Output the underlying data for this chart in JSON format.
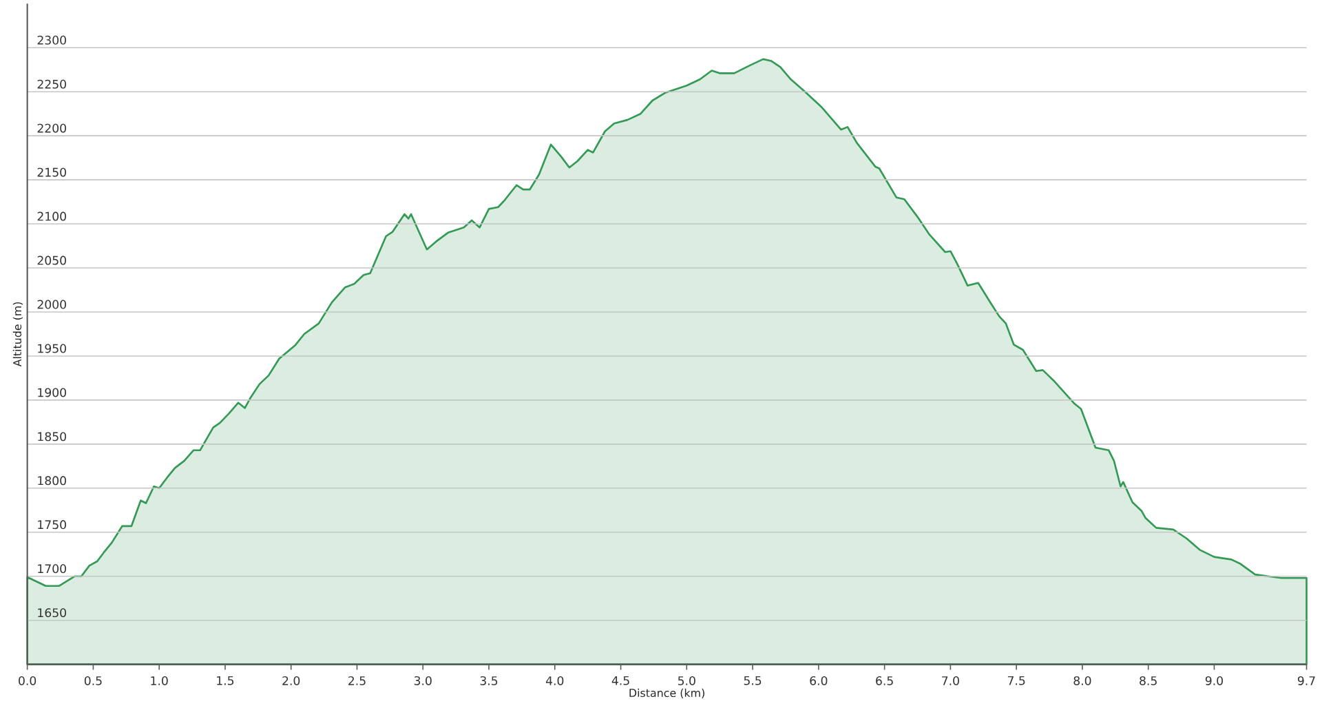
{
  "chart_data": {
    "type": "area",
    "xlabel": "Distance  (km)",
    "ylabel": "Altitude (m)",
    "color": "#339955",
    "grid": "y",
    "x": [
      0,
      0.14,
      0.24,
      0.36,
      0.41,
      0.47,
      0.53,
      0.58,
      0.64,
      0.72,
      0.79,
      0.86,
      0.9,
      0.96,
      1.0,
      1.06,
      1.12,
      1.19,
      1.26,
      1.31,
      1.36,
      1.41,
      1.46,
      1.53,
      1.6,
      1.65,
      1.69,
      1.76,
      1.83,
      1.91,
      2.03,
      2.1,
      2.21,
      2.31,
      2.41,
      2.48,
      2.55,
      2.6,
      2.72,
      2.77,
      2.86,
      2.89,
      2.91,
      3.03,
      3.1,
      3.19,
      3.31,
      3.37,
      3.43,
      3.5,
      3.57,
      3.62,
      3.71,
      3.76,
      3.81,
      3.88,
      3.97,
      4.05,
      4.11,
      4.17,
      4.25,
      4.29,
      4.38,
      4.45,
      4.55,
      4.65,
      4.74,
      4.84,
      5.0,
      5.1,
      5.19,
      5.25,
      5.36,
      5.48,
      5.58,
      5.64,
      5.71,
      5.79,
      5.89,
      6.02,
      6.17,
      6.22,
      6.29,
      6.43,
      6.46,
      6.59,
      6.65,
      6.75,
      6.84,
      6.96,
      7.0,
      7.05,
      7.13,
      7.21,
      7.31,
      7.37,
      7.42,
      7.48,
      7.55,
      7.65,
      7.7,
      7.79,
      7.94,
      7.99,
      8.1,
      8.2,
      8.24,
      8.29,
      8.31,
      8.38,
      8.45,
      8.48,
      8.56,
      8.69,
      8.79,
      8.89,
      9.0,
      9.13,
      9.2,
      9.31,
      9.41,
      9.51,
      9.7
    ],
    "values": [
      1699,
      1689,
      1689,
      1700,
      1700,
      1712,
      1717,
      1727,
      1738,
      1757,
      1757,
      1786,
      1783,
      1802,
      1800,
      1812,
      1823,
      1831,
      1843,
      1843,
      1856,
      1869,
      1874,
      1885,
      1897,
      1891,
      1902,
      1918,
      1928,
      1947,
      1962,
      1975,
      1987,
      2011,
      2028,
      2032,
      2042,
      2044,
      2086,
      2091,
      2111,
      2106,
      2111,
      2071,
      2080,
      2090,
      2096,
      2104,
      2096,
      2117,
      2119,
      2127,
      2144,
      2139,
      2139,
      2156,
      2190,
      2176,
      2164,
      2171,
      2184,
      2181,
      2205,
      2214,
      2218,
      2225,
      2240,
      2249,
      2257,
      2264,
      2274,
      2271,
      2271,
      2280,
      2287,
      2285,
      2278,
      2264,
      2251,
      2233,
      2207,
      2210,
      2192,
      2165,
      2163,
      2130,
      2128,
      2108,
      2088,
      2068,
      2069,
      2055,
      2030,
      2033,
      2009,
      1995,
      1987,
      1963,
      1957,
      1933,
      1934,
      1921,
      1896,
      1890,
      1846,
      1843,
      1831,
      1802,
      1807,
      1784,
      1774,
      1766,
      1755,
      1753,
      1743,
      1730,
      1722,
      1719,
      1714,
      1702,
      1700,
      1698,
      1698
    ],
    "xlim": [
      0,
      9.7
    ],
    "ylim": [
      1600,
      2350
    ],
    "xticks": [
      {
        "value": 0,
        "label": "0.0"
      },
      0.5,
      {
        "value": 1,
        "label": "1.0"
      },
      1.5,
      {
        "value": 2,
        "label": "2.0"
      },
      2.5,
      {
        "value": 3,
        "label": "3.0"
      },
      3.5,
      {
        "value": 4,
        "label": "4.0"
      },
      4.5,
      {
        "value": 5,
        "label": "5.0"
      },
      5.5,
      {
        "value": 6,
        "label": "6.0"
      },
      6.5,
      {
        "value": 7,
        "label": "7.0"
      },
      7.5,
      {
        "value": 8,
        "label": "8.0"
      },
      8.5,
      {
        "value": 9,
        "label": "9.0"
      },
      9.7
    ],
    "yticks": [
      1650,
      1700,
      1750,
      1800,
      1850,
      1900,
      1950,
      2000,
      2050,
      2100,
      2150,
      2200,
      2250,
      2300
    ]
  }
}
